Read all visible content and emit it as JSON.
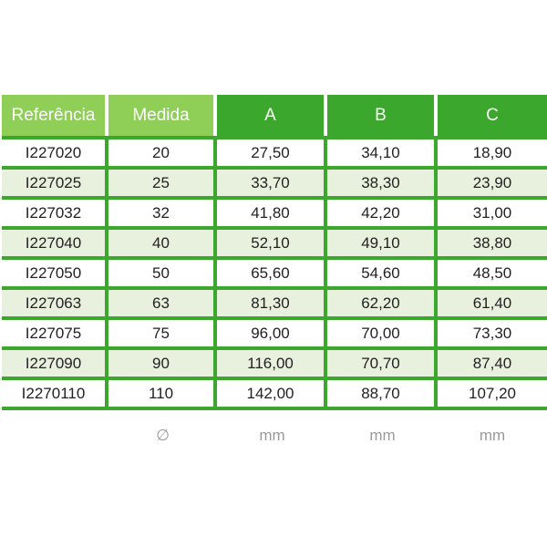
{
  "header": {
    "columns": [
      "Referência",
      "Medida",
      "A",
      "B",
      "C"
    ]
  },
  "rows": [
    [
      "I227020",
      "20",
      "27,50",
      "34,10",
      "18,90"
    ],
    [
      "I227025",
      "25",
      "33,70",
      "38,30",
      "23,90"
    ],
    [
      "I227032",
      "32",
      "41,80",
      "42,20",
      "31,00"
    ],
    [
      "I227040",
      "40",
      "52,10",
      "49,10",
      "38,80"
    ],
    [
      "I227050",
      "50",
      "65,60",
      "54,60",
      "48,50"
    ],
    [
      "I227063",
      "63",
      "81,30",
      "62,20",
      "61,40"
    ],
    [
      "I227075",
      "75",
      "96,00",
      "70,00",
      "73,30"
    ],
    [
      "I227090",
      "90",
      "116,00",
      "70,70",
      "87,40"
    ],
    [
      "I2270110",
      "110",
      "142,00",
      "88,70",
      "107,20"
    ]
  ],
  "units": [
    "",
    "∅",
    "mm",
    "mm",
    "mm"
  ],
  "colors": {
    "header_light": "#8fcf57",
    "header_dark": "#3ba72c",
    "border": "#3ba72c",
    "row_alt": "#e8f0de",
    "unit_text": "#9a9a9a"
  }
}
